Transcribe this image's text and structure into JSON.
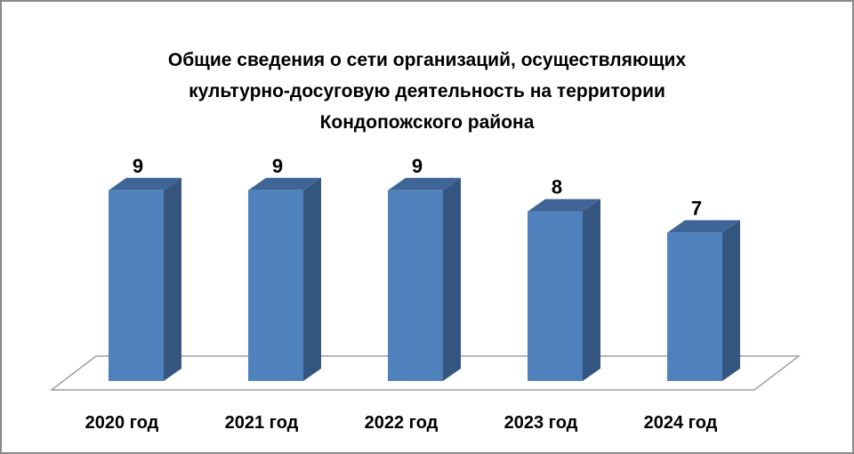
{
  "chart_data": {
    "type": "bar3d",
    "title": "Общие сведения о сети организаций, осуществляющих культурно-досуговую деятельность на территории Кондопожского района",
    "categories": [
      "2020 год",
      "2021 год",
      "2022 год",
      "2023 год",
      "2024 год"
    ],
    "values": [
      9,
      9,
      9,
      8,
      7
    ],
    "color": "#4f81bd"
  }
}
